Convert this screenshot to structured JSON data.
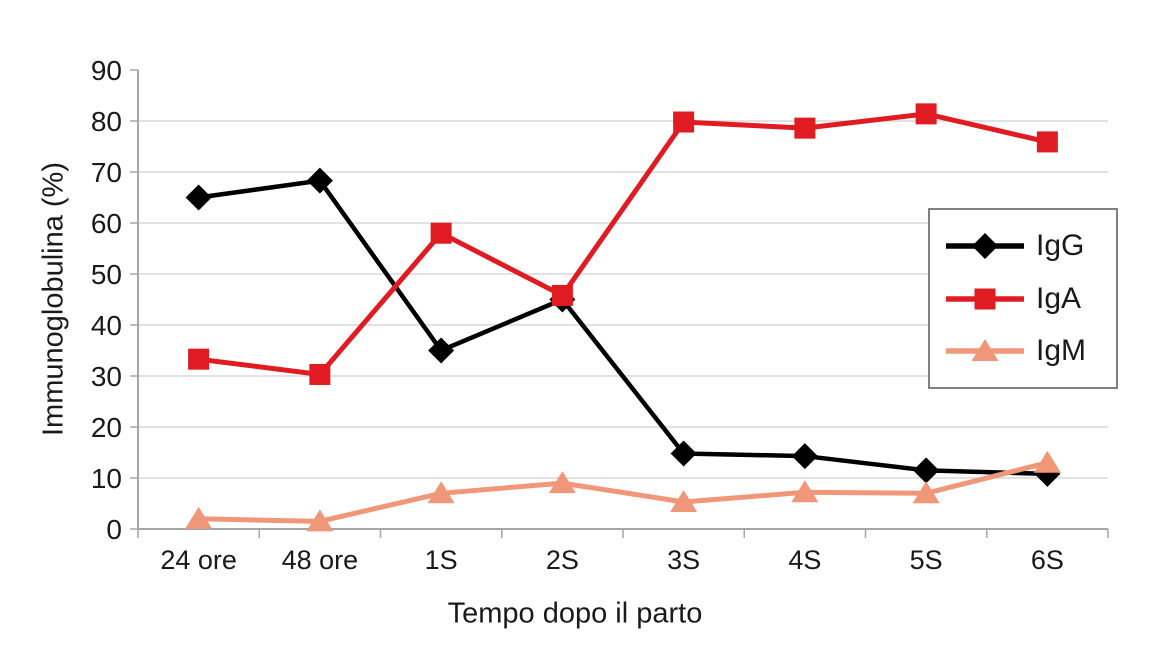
{
  "chart_data": {
    "type": "line",
    "title": "",
    "xlabel": "Tempo dopo il parto",
    "ylabel": "Immunoglobulina (%)",
    "categories": [
      "24 ore",
      "48 ore",
      "1S",
      "2S",
      "3S",
      "4S",
      "5S",
      "6S"
    ],
    "series": [
      {
        "name": "IgG",
        "color": "#000000",
        "marker": "diamond",
        "values": [
          65,
          68.3,
          35,
          45,
          14.8,
          14.3,
          11.5,
          10.8
        ]
      },
      {
        "name": "IgA",
        "color": "#E01B22",
        "marker": "square",
        "values": [
          33.3,
          30.3,
          58,
          45.8,
          79.8,
          78.6,
          81.4,
          75.9
        ]
      },
      {
        "name": "IgM",
        "color": "#F09779",
        "marker": "triangle",
        "values": [
          2,
          1.5,
          7,
          9,
          5.3,
          7.2,
          7,
          13
        ]
      }
    ],
    "ylim": [
      0,
      90
    ],
    "ytick_step": 10,
    "ytick_labels": [
      "0",
      "10",
      "20",
      "30",
      "40",
      "50",
      "60",
      "70",
      "80",
      "90"
    ],
    "grid": true,
    "gridline_max": 80,
    "legend_position": "middle-right",
    "colors": {
      "axis": "#A6A6A6",
      "gridline": "#D9D9D9",
      "text": "#1A1A1A",
      "legend_border": "#808080",
      "background": "#FFFFFF"
    }
  }
}
